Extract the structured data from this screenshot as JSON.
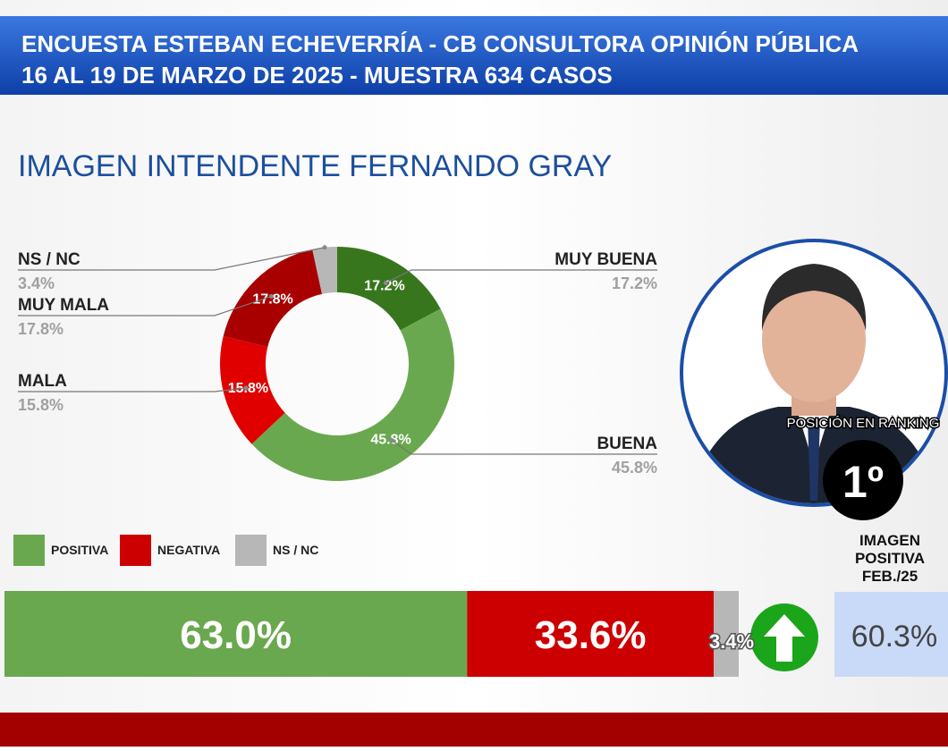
{
  "header": {
    "line1": "ENCUESTA ESTEBAN ECHEVERRÍA - CB CONSULTORA OPINIÓN PÚBLICA",
    "line2": "16 AL 19 DE MARZO DE 2025 - MUESTRA 634 CASOS"
  },
  "chart_data": [
    {
      "type": "donut",
      "title": "IMAGEN INTENDENTE  FERNANDO GRAY",
      "categories": [
        "MUY BUENA",
        "BUENA",
        "MALA",
        "MUY MALA",
        "NS / NC"
      ],
      "values": [
        17.2,
        45.8,
        15.8,
        17.8,
        3.4
      ],
      "value_labels": [
        "17.2%",
        "45.8%",
        "15.8%",
        "17.8%",
        "3.4%"
      ],
      "colors": [
        "#38761d",
        "#6aa84f",
        "#e00000",
        "#a80000",
        "#b7b7b7"
      ]
    },
    {
      "type": "stacked-bar",
      "series": [
        {
          "name": "POSITIVA",
          "color": "#6aa84f",
          "values": [
            63.0
          ],
          "value_labels": [
            "63.0%"
          ]
        },
        {
          "name": "NEGATIVA",
          "color": "#cc0000",
          "values": [
            33.6
          ],
          "value_labels": [
            "33.6%"
          ]
        },
        {
          "name": "NS / NC",
          "color": "#b7b7b7",
          "values": [
            3.4
          ],
          "value_labels": [
            "3.4%"
          ]
        }
      ]
    }
  ],
  "ranking": {
    "label": "POSICIÓN EN RANKING",
    "position": "1º"
  },
  "previous": {
    "label_lines": [
      "IMAGEN",
      "POSITIVA",
      "FEB./25"
    ],
    "value": "60.3%"
  }
}
